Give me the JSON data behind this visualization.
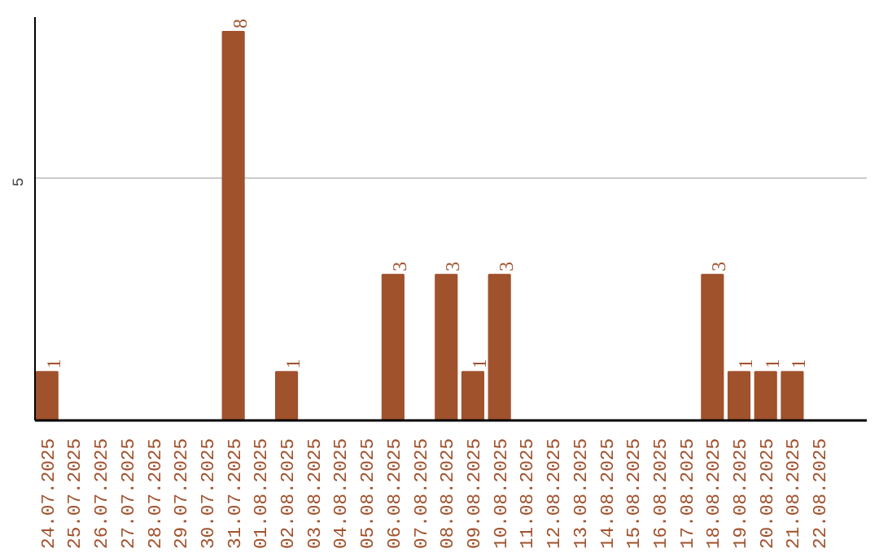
{
  "chart_data": {
    "type": "bar",
    "categories": [
      "24.07.2025",
      "25.07.2025",
      "26.07.2025",
      "27.07.2025",
      "28.07.2025",
      "29.07.2025",
      "30.07.2025",
      "31.07.2025",
      "01.08.2025",
      "02.08.2025",
      "03.08.2025",
      "04.08.2025",
      "05.08.2025",
      "06.08.2025",
      "07.08.2025",
      "08.08.2025",
      "09.08.2025",
      "10.08.2025",
      "11.08.2025",
      "12.08.2025",
      "13.08.2025",
      "14.08.2025",
      "15.08.2025",
      "16.08.2025",
      "17.08.2025",
      "18.08.2025",
      "19.08.2025",
      "20.08.2025",
      "21.08.2025",
      "22.08.2025"
    ],
    "values": [
      1,
      0,
      0,
      0,
      0,
      0,
      0,
      8,
      0,
      1,
      0,
      0,
      0,
      3,
      0,
      3,
      1,
      3,
      0,
      0,
      0,
      0,
      0,
      0,
      0,
      3,
      1,
      1,
      1,
      0
    ],
    "value_labels": [
      "1",
      null,
      null,
      null,
      null,
      null,
      null,
      "8",
      null,
      "1",
      null,
      null,
      null,
      "3",
      null,
      "3",
      "1",
      "3",
      null,
      null,
      null,
      null,
      null,
      null,
      null,
      "3",
      "1",
      "1",
      "1",
      null
    ],
    "color": "#a0522d",
    "ylim": [
      0,
      8.3
    ],
    "yticks": [
      5
    ],
    "grid": "y"
  }
}
